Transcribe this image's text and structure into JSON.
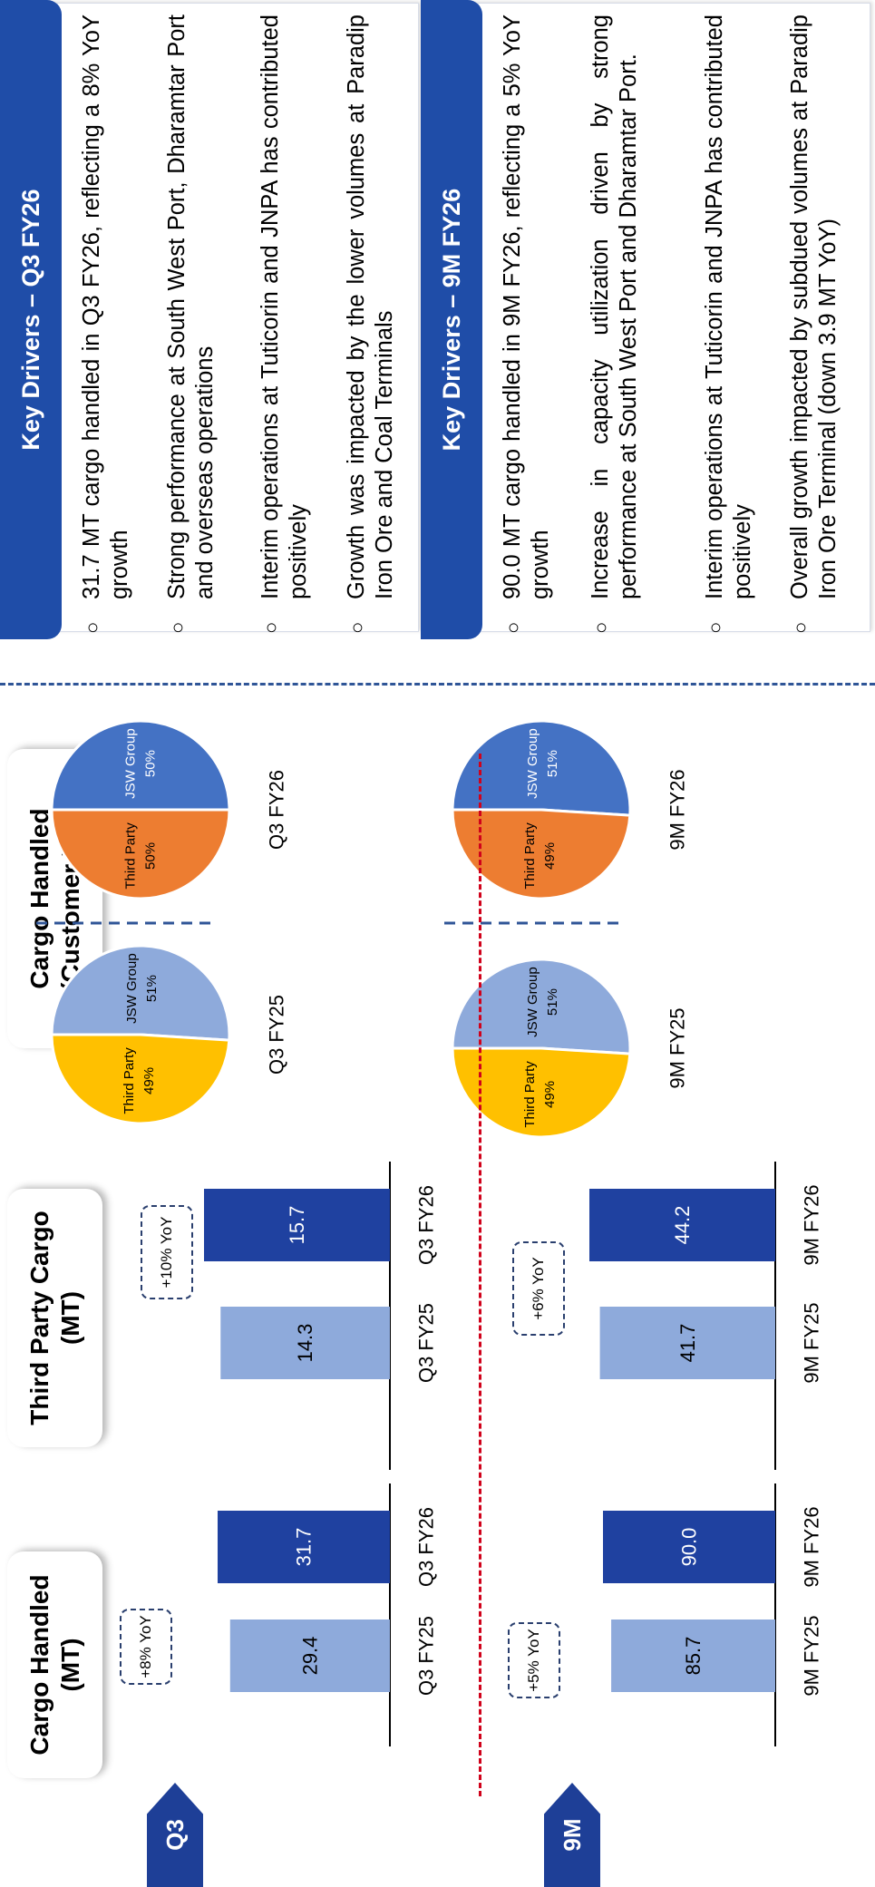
{
  "sections": [
    {
      "tag": "Q3",
      "cargo_yoy": "+8% YoY",
      "third_party_yoy": "+10% YoY",
      "pie_labels": [
        "Q3 FY25",
        "Q3 FY26"
      ]
    },
    {
      "tag": "9M",
      "cargo_yoy": "+5% YoY",
      "third_party_yoy": "+6% YoY",
      "pie_labels": [
        "9M FY25",
        "9M FY26"
      ]
    }
  ],
  "headers": {
    "cargo_handled": [
      "Cargo Handled",
      "(MT)"
    ],
    "third_party": [
      "Third Party Cargo",
      "(MT)"
    ],
    "customer_mix": [
      "Cargo Handled",
      "(Customer Mix)"
    ]
  },
  "chart_data": [
    {
      "type": "bar",
      "title": "Cargo Handled (MT)",
      "categories": [
        "Q3 FY25",
        "Q3 FY26"
      ],
      "values": [
        29.4,
        31.7
      ],
      "value_labels": [
        "29.4",
        "31.7"
      ],
      "annotation": "+8% YoY"
    },
    {
      "type": "bar",
      "title": "Third Party Cargo (MT)",
      "categories": [
        "Q3 FY25",
        "Q3 FY26"
      ],
      "values": [
        14.3,
        15.7
      ],
      "value_labels": [
        "14.3",
        "15.7"
      ],
      "annotation": "+10% YoY"
    },
    {
      "type": "bar",
      "title": "Cargo Handled (MT)",
      "categories": [
        "9M FY25",
        "9M FY26"
      ],
      "values": [
        85.7,
        90.0
      ],
      "value_labels": [
        "85.7",
        "90.0"
      ],
      "annotation": "+5% YoY"
    },
    {
      "type": "bar",
      "title": "Third Party Cargo (MT)",
      "categories": [
        "9M FY25",
        "9M FY26"
      ],
      "values": [
        41.7,
        44.2
      ],
      "value_labels": [
        "41.7",
        "44.2"
      ],
      "annotation": "+6% YoY"
    },
    {
      "type": "pie",
      "title": "Cargo Handled (Customer Mix)",
      "label": "Q3 FY25",
      "slices": [
        {
          "name": "JSW Group",
          "value": 51
        },
        {
          "name": "Third Party",
          "value": 49
        }
      ]
    },
    {
      "type": "pie",
      "title": "Cargo Handled (Customer Mix)",
      "label": "Q3 FY26",
      "slices": [
        {
          "name": "JSW Group",
          "value": 50
        },
        {
          "name": "Third Party",
          "value": 50
        }
      ]
    },
    {
      "type": "pie",
      "title": "Cargo Handled (Customer Mix)",
      "label": "9M FY25",
      "slices": [
        {
          "name": "JSW Group",
          "value": 51
        },
        {
          "name": "Third Party",
          "value": 49
        }
      ]
    },
    {
      "type": "pie",
      "title": "Cargo Handled (Customer Mix)",
      "label": "9M FY26",
      "slices": [
        {
          "name": "JSW Group",
          "value": 51
        },
        {
          "name": "Third Party",
          "value": 49
        }
      ]
    }
  ],
  "colors": {
    "bar_prev": "#8eaadb",
    "bar_curr": "#1f41a0",
    "pie_jsw_prev": "#8eaadb",
    "pie_tp_prev": "#ffc000",
    "pie_jsw_curr": "#4472c4",
    "pie_tp_curr": "#ed7d31",
    "header_blue": "#1f4da8",
    "divider_red": "#d0021b",
    "divider_blue": "#2f5597"
  },
  "key_drivers": [
    {
      "title": "Key Drivers – Q3 FY26",
      "bullets": [
        "31.7 MT cargo handled in Q3 FY26, reflecting a 8% YoY growth",
        "Strong performance at South West Port, Dharamtar Port and overseas operations",
        "Interim operations at Tuticorin and JNPA has contributed positively",
        "Growth was impacted by the lower volumes at Paradip Iron Ore and Coal Terminals"
      ]
    },
    {
      "title": "Key Drivers – 9M FY26",
      "bullets": [
        "90.0 MT cargo handled in 9M FY26, reflecting a 5% YoY growth",
        "Increase in capacity utilization driven by strong performance at South West Port and Dharamtar Port.",
        "Interim operations at Tuticorin and JNPA has contributed positively",
        "Overall growth impacted by subdued volumes at Paradip Iron Ore Terminal (down 3.9 MT YoY)"
      ]
    }
  ]
}
